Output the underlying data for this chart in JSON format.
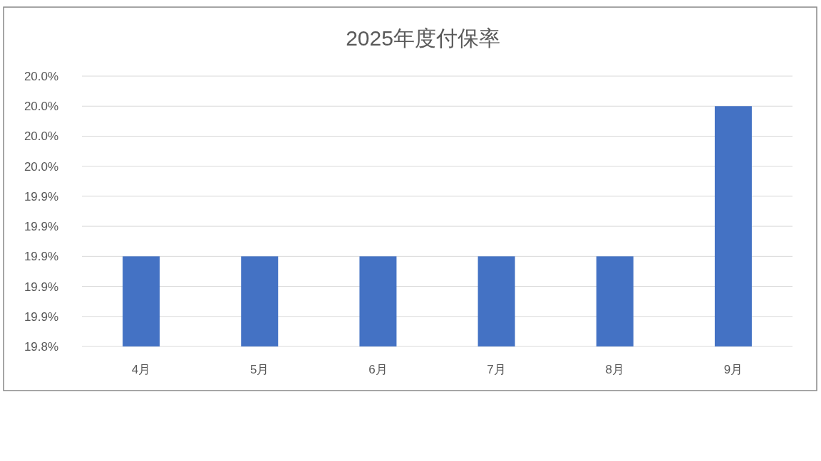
{
  "chart_data": {
    "type": "bar",
    "title": "2025年度付保率",
    "categories": [
      "4月",
      "5月",
      "6月",
      "7月",
      "8月",
      "9月"
    ],
    "values": [
      19.9,
      19.9,
      19.9,
      19.9,
      19.9,
      20.0
    ],
    "color": "#4472c4",
    "ylim": [
      19.84,
      20.02
    ],
    "yticks": [
      {
        "value": 19.84,
        "label": "19.8%"
      },
      {
        "value": 19.86,
        "label": "19.9%"
      },
      {
        "value": 19.88,
        "label": "19.9%"
      },
      {
        "value": 19.9,
        "label": "19.9%"
      },
      {
        "value": 19.92,
        "label": "19.9%"
      },
      {
        "value": 19.94,
        "label": "19.9%"
      },
      {
        "value": 19.96,
        "label": "20.0%"
      },
      {
        "value": 19.98,
        "label": "20.0%"
      },
      {
        "value": 20.0,
        "label": "20.0%"
      },
      {
        "value": 20.02,
        "label": "20.0%"
      }
    ],
    "grid": "y"
  }
}
